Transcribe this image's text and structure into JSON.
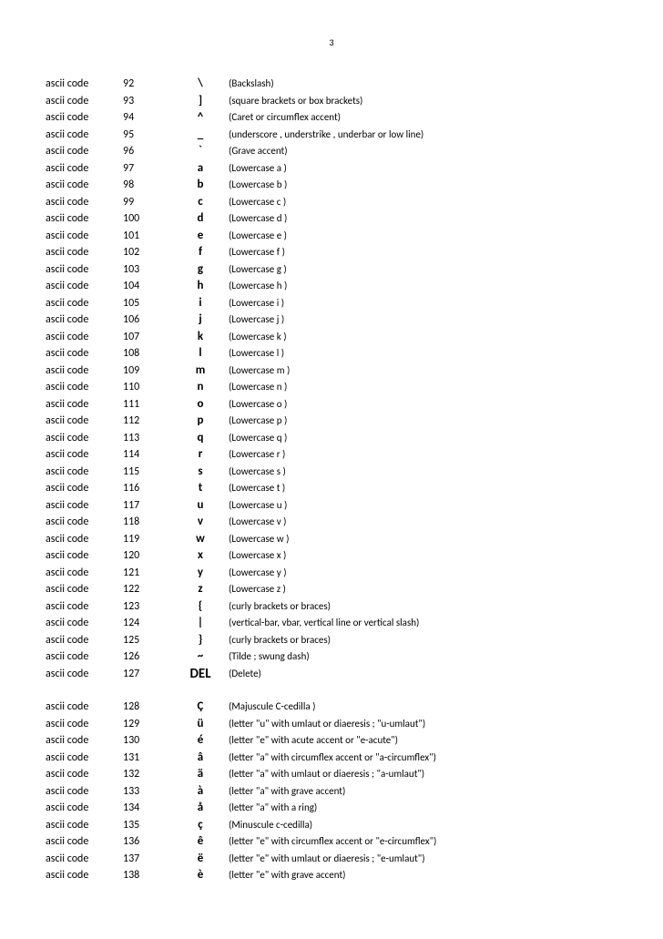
{
  "page_number": "3",
  "label": "ascii code",
  "rows": [
    {
      "code": "92",
      "char": "\\",
      "desc": "(Backslash)"
    },
    {
      "code": "93",
      "char": "]",
      "desc": "(square brackets or box brackets)"
    },
    {
      "code": "94",
      "char": "^",
      "desc": "(Caret or circumflex accent)"
    },
    {
      "code": "95",
      "char": "_",
      "desc": "(underscore , understrike , underbar or low line)"
    },
    {
      "code": "96",
      "char": "`",
      "desc": "(Grave accent)"
    },
    {
      "code": "97",
      "char": "a",
      "desc": "(Lowercase  a )"
    },
    {
      "code": "98",
      "char": "b",
      "desc": "(Lowercase  b )"
    },
    {
      "code": "99",
      "char": "c",
      "desc": "(Lowercase  c )"
    },
    {
      "code": "100",
      "char": "d",
      "desc": "(Lowercase  d )"
    },
    {
      "code": "101",
      "char": "e",
      "desc": "(Lowercase  e )"
    },
    {
      "code": "102",
      "char": "f",
      "desc": "(Lowercase  f )"
    },
    {
      "code": "103",
      "char": "g",
      "desc": "(Lowercase  g )"
    },
    {
      "code": "104",
      "char": "h",
      "desc": "(Lowercase  h )"
    },
    {
      "code": "105",
      "char": "i",
      "desc": "(Lowercase  i )"
    },
    {
      "code": "106",
      "char": "j",
      "desc": "(Lowercase  j )"
    },
    {
      "code": "107",
      "char": "k",
      "desc": "(Lowercase  k )"
    },
    {
      "code": "108",
      "char": "l",
      "desc": "(Lowercase  l )"
    },
    {
      "code": "109",
      "char": "m",
      "desc": "(Lowercase  m )"
    },
    {
      "code": "110",
      "char": "n",
      "desc": "(Lowercase  n )"
    },
    {
      "code": "111",
      "char": "o",
      "desc": "(Lowercase  o )"
    },
    {
      "code": "112",
      "char": "p",
      "desc": "(Lowercase  p )"
    },
    {
      "code": "113",
      "char": "q",
      "desc": "(Lowercase  q )"
    },
    {
      "code": "114",
      "char": "r",
      "desc": "(Lowercase  r )"
    },
    {
      "code": "115",
      "char": "s",
      "desc": "(Lowercase  s )"
    },
    {
      "code": "116",
      "char": "t",
      "desc": "(Lowercase  t )"
    },
    {
      "code": "117",
      "char": "u",
      "desc": "(Lowercase  u )"
    },
    {
      "code": "118",
      "char": "v",
      "desc": "(Lowercase  v )"
    },
    {
      "code": "119",
      "char": "w",
      "desc": "(Lowercase  w )"
    },
    {
      "code": "120",
      "char": "x",
      "desc": "(Lowercase  x )"
    },
    {
      "code": "121",
      "char": "y",
      "desc": "(Lowercase  y )"
    },
    {
      "code": "122",
      "char": "z",
      "desc": "(Lowercase  z )"
    },
    {
      "code": "123",
      "char": "{",
      "desc": "(curly brackets or braces)"
    },
    {
      "code": "124",
      "char": "|",
      "desc": "(vertical-bar, vbar, vertical line or vertical slash)"
    },
    {
      "code": "125",
      "char": "}",
      "desc": "(curly brackets or braces)"
    },
    {
      "code": "126",
      "char": "~",
      "desc": "(Tilde ; swung dash)"
    },
    {
      "code": "127",
      "char": "DEL",
      "desc": "(Delete)",
      "big": true
    },
    {
      "gap": true
    },
    {
      "code": "128",
      "char": "Ç",
      "desc": "(Majuscule C-cedilla )"
    },
    {
      "code": "129",
      "char": "ü",
      "desc": "(letter \"u\" with umlaut or diaeresis ; \"u-umlaut\")"
    },
    {
      "code": "130",
      "char": "é",
      "desc": "(letter \"e\" with acute accent or \"e-acute\")"
    },
    {
      "code": "131",
      "char": "â",
      "desc": "(letter \"a\" with circumflex accent or \"a-circumflex\")"
    },
    {
      "code": "132",
      "char": "ä",
      "desc": "(letter \"a\" with umlaut or diaeresis ; \"a-umlaut\")"
    },
    {
      "code": "133",
      "char": "à",
      "desc": "(letter \"a\" with grave accent)"
    },
    {
      "code": "134",
      "char": "å",
      "desc": "(letter \"a\"  with a ring)"
    },
    {
      "code": "135",
      "char": "ç",
      "desc": "(Minuscule c-cedilla)"
    },
    {
      "code": "136",
      "char": "ê",
      "desc": "(letter \"e\" with circumflex accent or \"e-circumflex\")"
    },
    {
      "code": "137",
      "char": "ë",
      "desc": "(letter \"e\" with umlaut or diaeresis ; \"e-umlaut\")"
    },
    {
      "code": "138",
      "char": "è",
      "desc": "(letter \"e\" with grave accent)"
    }
  ]
}
